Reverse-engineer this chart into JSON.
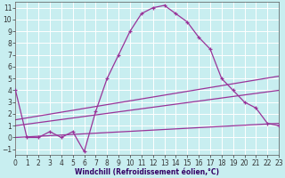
{
  "xlabel": "Windchill (Refroidissement éolien,°C)",
  "bg_color": "#c8eef0",
  "plot_bg_color": "#c8eef0",
  "line_color": "#993399",
  "grid_color": "#ffffff",
  "xlim": [
    0,
    23
  ],
  "ylim": [
    -1.5,
    11.5
  ],
  "xticks": [
    0,
    1,
    2,
    3,
    4,
    5,
    6,
    7,
    8,
    9,
    10,
    11,
    12,
    13,
    14,
    15,
    16,
    17,
    18,
    19,
    20,
    21,
    22,
    23
  ],
  "yticks": [
    -1,
    0,
    1,
    2,
    3,
    4,
    5,
    6,
    7,
    8,
    9,
    10,
    11
  ],
  "curve_x": [
    0,
    1,
    2,
    3,
    4,
    5,
    6,
    7,
    8,
    9,
    10,
    11,
    12,
    13,
    14,
    15,
    16,
    17,
    18,
    19,
    20,
    21,
    22,
    23
  ],
  "curve_y": [
    4.0,
    0.0,
    0.0,
    0.5,
    0.0,
    0.5,
    -1.2,
    2.2,
    5.0,
    7.0,
    9.0,
    10.5,
    11.0,
    11.2,
    10.5,
    9.8,
    8.5,
    7.5,
    5.0,
    4.0,
    3.0,
    2.5,
    1.2,
    1.0
  ],
  "trend1_x": [
    0,
    23
  ],
  "trend1_y": [
    0.0,
    1.2
  ],
  "trend2_x": [
    0,
    23
  ],
  "trend2_y": [
    1.0,
    4.0
  ],
  "trend3_x": [
    0,
    23
  ],
  "trend3_y": [
    1.5,
    5.2
  ],
  "xlabel_color": "#330066",
  "xlabel_fontsize": 5.5,
  "tick_fontsize": 5.5
}
